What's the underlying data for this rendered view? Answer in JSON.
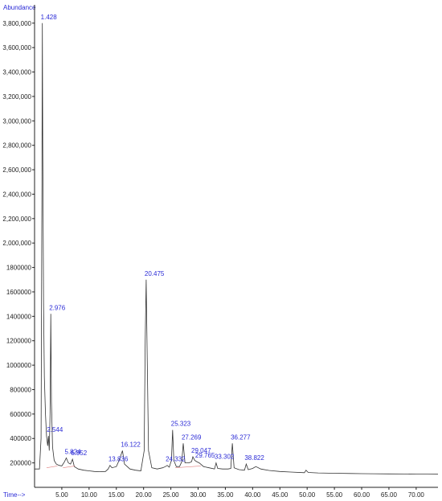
{
  "chart_data": {
    "type": "line",
    "title": "",
    "ylabel": "Abundance",
    "xlabel": "Time-->",
    "xlim": [
      0,
      74
    ],
    "ylim": [
      0,
      3950000
    ],
    "y_ticks": [
      200000,
      400000,
      600000,
      800000,
      1000000,
      1200000,
      1400000,
      1600000,
      1800000,
      2000000,
      2200000,
      2400000,
      2600000,
      2800000,
      3000000,
      3200000,
      3400000,
      3600000,
      3800000
    ],
    "y_tick_labels": [
      "200000",
      "400000",
      "600000",
      "800000",
      "1000000",
      "1200000",
      "1400000",
      "1600000",
      "1800000",
      "2,000,000",
      "2,200,000",
      "2,400,000",
      "2,600,000",
      "2,800,000",
      "3,000,000",
      "3,200,000",
      "3,400,000",
      "3,600,000",
      "3,800,000"
    ],
    "x_ticks": [
      5,
      10,
      15,
      20,
      25,
      30,
      35,
      40,
      45,
      50,
      55,
      60,
      65,
      70
    ],
    "x_tick_labels": [
      "5.00",
      "10.00",
      "15.00",
      "20.00",
      "25.00",
      "30.00",
      "35.00",
      "40.00",
      "45.00",
      "50.00",
      "55.00",
      "60.00",
      "65.00",
      "70.00"
    ],
    "grid": false,
    "series": [
      {
        "color": "#333333",
        "x": [
          0,
          0.9,
          1.2,
          1.35,
          1.428,
          1.5,
          1.65,
          1.8,
          2.0,
          2.2,
          2.4,
          2.544,
          2.7,
          2.85,
          2.976,
          3.1,
          3.3,
          3.6,
          4.0,
          4.5,
          5.0,
          5.5,
          5.824,
          6.2,
          6.6,
          6.952,
          7.3,
          8.0,
          9.0,
          10.0,
          11.0,
          12.0,
          13.0,
          13.5,
          13.836,
          14.2,
          15.0,
          15.5,
          16.122,
          16.5,
          17.5,
          18.5,
          19.5,
          20.1,
          20.3,
          20.475,
          20.65,
          20.9,
          21.5,
          22.5,
          23.5,
          24.0,
          24.332,
          24.7,
          25.1,
          25.323,
          25.55,
          26.0,
          26.6,
          27.0,
          27.269,
          27.6,
          28.3,
          28.8,
          29.047,
          29.4,
          29.765,
          30.2,
          31.0,
          32.0,
          33.0,
          33.302,
          33.6,
          34.5,
          35.5,
          36.0,
          36.277,
          36.6,
          37.5,
          38.5,
          38.822,
          39.2,
          40.0,
          40.6,
          41.5,
          43.0,
          45.0,
          47.0,
          49.5,
          49.8,
          50.2,
          52.0,
          55.0,
          58.0,
          60.0,
          62.0,
          65.0,
          68.0,
          70.0,
          72.0,
          74.0
        ],
        "y": [
          150000,
          150000,
          400000,
          2500000,
          3800000,
          2800000,
          1500000,
          900000,
          600000,
          420000,
          340000,
          420000,
          300000,
          600000,
          1420000,
          700000,
          330000,
          220000,
          190000,
          180000,
          175000,
          210000,
          240000,
          200000,
          190000,
          230000,
          170000,
          150000,
          140000,
          135000,
          130000,
          128000,
          130000,
          150000,
          180000,
          160000,
          170000,
          220000,
          300000,
          190000,
          150000,
          140000,
          135000,
          300000,
          1200000,
          1700000,
          1100000,
          300000,
          160000,
          150000,
          160000,
          170000,
          180000,
          165000,
          220000,
          470000,
          220000,
          170000,
          170000,
          210000,
          360000,
          200000,
          200000,
          210000,
          250000,
          220000,
          210000,
          200000,
          170000,
          160000,
          150000,
          200000,
          155000,
          150000,
          150000,
          155000,
          360000,
          160000,
          145000,
          140000,
          190000,
          145000,
          155000,
          170000,
          150000,
          138000,
          130000,
          125000,
          120000,
          140000,
          122000,
          118000,
          115000,
          113000,
          112000,
          111000,
          110000,
          109000,
          108000,
          108000,
          107000
        ]
      }
    ],
    "peak_labels": [
      {
        "text": "1.428",
        "x": 1.428,
        "y": 3800000
      },
      {
        "text": "2.976",
        "x": 2.976,
        "y": 1420000
      },
      {
        "text": "2.544",
        "x": 2.544,
        "y": 420000
      },
      {
        "text": "5.824",
        "x": 5.824,
        "y": 240000
      },
      {
        "text": "6.952",
        "x": 6.952,
        "y": 230000
      },
      {
        "text": "13.836",
        "x": 13.836,
        "y": 180000
      },
      {
        "text": "16.122",
        "x": 16.122,
        "y": 300000
      },
      {
        "text": "20.475",
        "x": 20.475,
        "y": 1700000
      },
      {
        "text": "24.332",
        "x": 24.332,
        "y": 180000
      },
      {
        "text": "25.323",
        "x": 25.323,
        "y": 470000
      },
      {
        "text": "27.269",
        "x": 27.269,
        "y": 360000
      },
      {
        "text": "29.047",
        "x": 29.047,
        "y": 250000
      },
      {
        "text": "29.765",
        "x": 29.765,
        "y": 210000
      },
      {
        "text": "33.302",
        "x": 33.302,
        "y": 200000
      },
      {
        "text": "36.277",
        "x": 36.277,
        "y": 360000
      },
      {
        "text": "38.822",
        "x": 38.822,
        "y": 190000
      }
    ]
  }
}
